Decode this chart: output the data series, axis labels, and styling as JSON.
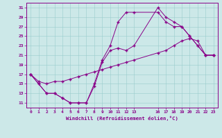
{
  "xlabel": "Windchill (Refroidissement éolien,°C)",
  "background_color": "#cce8e8",
  "line_color": "#880088",
  "xlim": [
    -0.5,
    23.5
  ],
  "ylim": [
    10.0,
    32.0
  ],
  "yticks": [
    11,
    13,
    15,
    17,
    19,
    21,
    23,
    25,
    27,
    29,
    31
  ],
  "xticks": [
    0,
    1,
    2,
    3,
    4,
    5,
    6,
    7,
    8,
    9,
    10,
    11,
    12,
    13,
    16,
    17,
    18,
    19,
    20,
    21,
    22,
    23
  ],
  "line1_x": [
    0,
    1,
    2,
    3,
    4,
    5,
    6,
    7,
    8,
    9,
    10,
    11,
    12,
    13,
    16,
    17,
    18,
    19,
    20,
    21,
    22,
    23
  ],
  "line1_y": [
    17,
    15,
    13,
    13,
    12,
    11,
    11,
    11,
    15,
    20,
    23,
    28,
    30,
    30,
    30,
    28,
    27,
    27,
    25,
    23,
    21,
    21
  ],
  "line2_x": [
    0,
    1,
    2,
    3,
    4,
    5,
    6,
    7,
    8,
    9,
    10,
    11,
    12,
    13,
    16,
    17,
    18,
    19,
    20,
    21,
    22,
    23
  ],
  "line2_y": [
    17,
    15,
    13,
    13,
    12,
    11,
    11,
    11,
    14.5,
    19.5,
    22,
    22.5,
    22,
    23,
    31,
    29,
    28,
    27,
    25,
    23,
    21,
    21
  ],
  "line3_x": [
    0,
    1,
    2,
    3,
    4,
    5,
    6,
    7,
    8,
    9,
    10,
    11,
    12,
    13,
    16,
    17,
    18,
    19,
    20,
    21,
    22,
    23
  ],
  "line3_y": [
    17,
    15.5,
    15,
    15.5,
    15.5,
    16,
    16.5,
    17,
    17.5,
    18,
    18.5,
    19,
    19.5,
    20,
    21.5,
    22,
    23,
    24,
    24.5,
    24,
    21,
    21
  ]
}
